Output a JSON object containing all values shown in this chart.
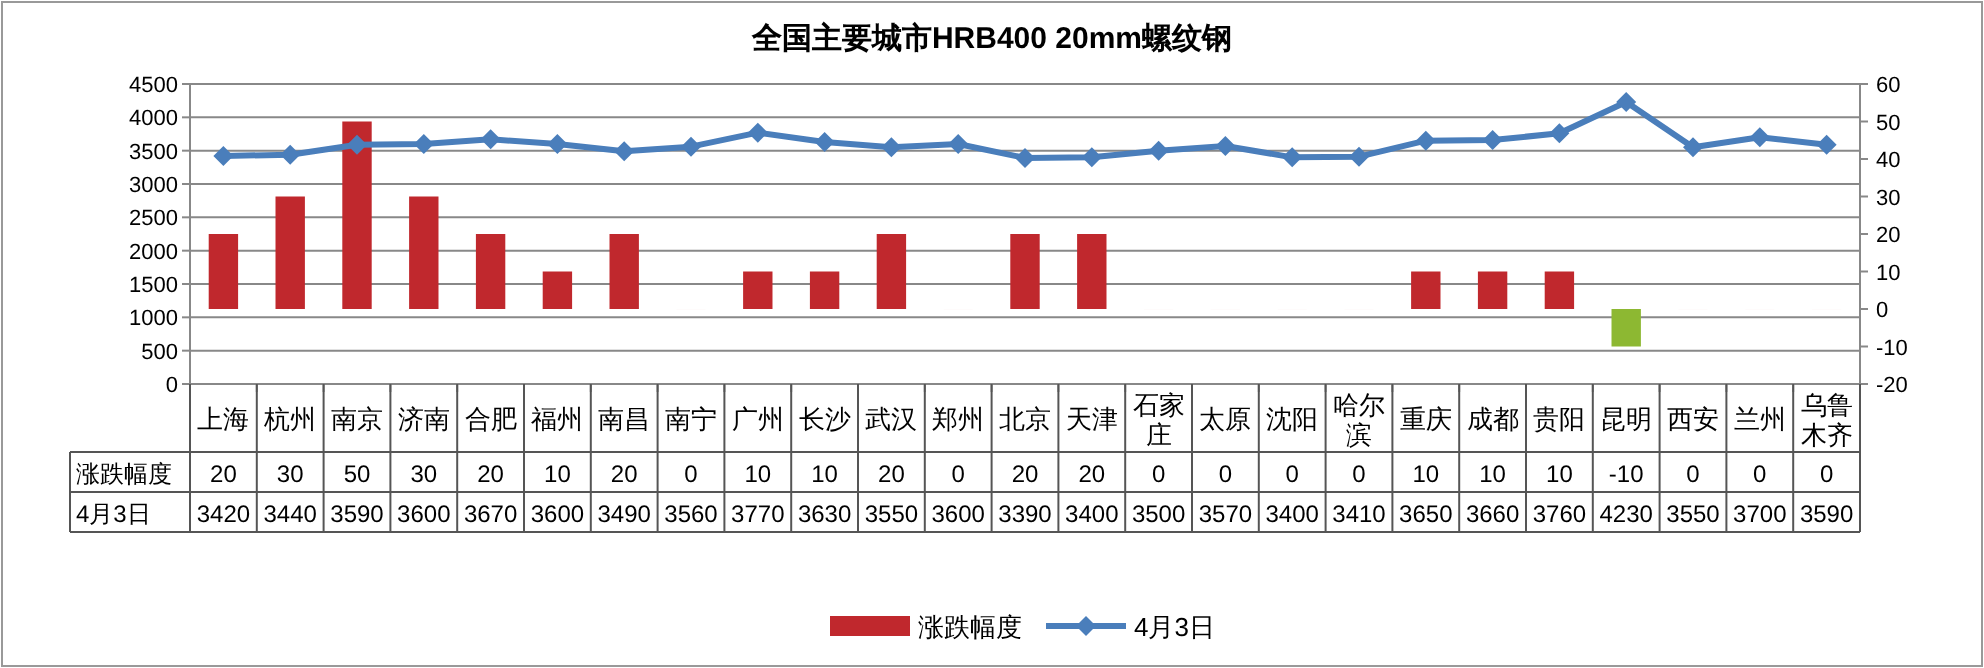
{
  "chart_data": {
    "type": "bar",
    "title": "全国主要城市HRB400 20mm螺纹钢",
    "categories": [
      "上海",
      "杭州",
      "南京",
      "济南",
      "合肥",
      "福州",
      "南昌",
      "南宁",
      "广州",
      "长沙",
      "武汉",
      "郑州",
      "北京",
      "天津",
      "石家庄",
      "太原",
      "沈阳",
      "哈尔滨",
      "重庆",
      "成都",
      "贵阳",
      "昆明",
      "西安",
      "兰州",
      "乌鲁木齐"
    ],
    "series": [
      {
        "name": "涨跌幅度",
        "axis": "y2",
        "colors": [
          "#c0282d",
          "#c0282d",
          "#c0282d",
          "#c0282d",
          "#c0282d",
          "#c0282d",
          "#c0282d",
          "#c0282d",
          "#c0282d",
          "#c0282d",
          "#c0282d",
          "#c0282d",
          "#c0282d",
          "#c0282d",
          "#c0282d",
          "#c0282d",
          "#c0282d",
          "#c0282d",
          "#c0282d",
          "#c0282d",
          "#c0282d",
          "#8db832",
          "#c0282d",
          "#c0282d",
          "#c0282d"
        ],
        "values": [
          20,
          30,
          50,
          30,
          20,
          10,
          20,
          0,
          10,
          10,
          20,
          0,
          20,
          20,
          0,
          0,
          0,
          0,
          10,
          10,
          10,
          -10,
          0,
          0,
          0
        ]
      },
      {
        "name": "4月3日",
        "type": "line",
        "color": "#4a7ebb",
        "values": [
          3420,
          3440,
          3590,
          3600,
          3670,
          3600,
          3490,
          3560,
          3770,
          3630,
          3550,
          3600,
          3390,
          3400,
          3500,
          3570,
          3400,
          3410,
          3650,
          3660,
          3760,
          4230,
          3550,
          3700,
          3590
        ]
      }
    ],
    "ylim": [
      0,
      4500
    ],
    "yticks": [
      0,
      500,
      1000,
      1500,
      2000,
      2500,
      3000,
      3500,
      4000,
      4500
    ],
    "y2lim": [
      -20,
      60
    ],
    "y2ticks": [
      -20,
      -10,
      0,
      10,
      20,
      30,
      40,
      50,
      60
    ],
    "grid": "y",
    "legend": "bottom",
    "marker": "diamond",
    "data_labels": true
  }
}
